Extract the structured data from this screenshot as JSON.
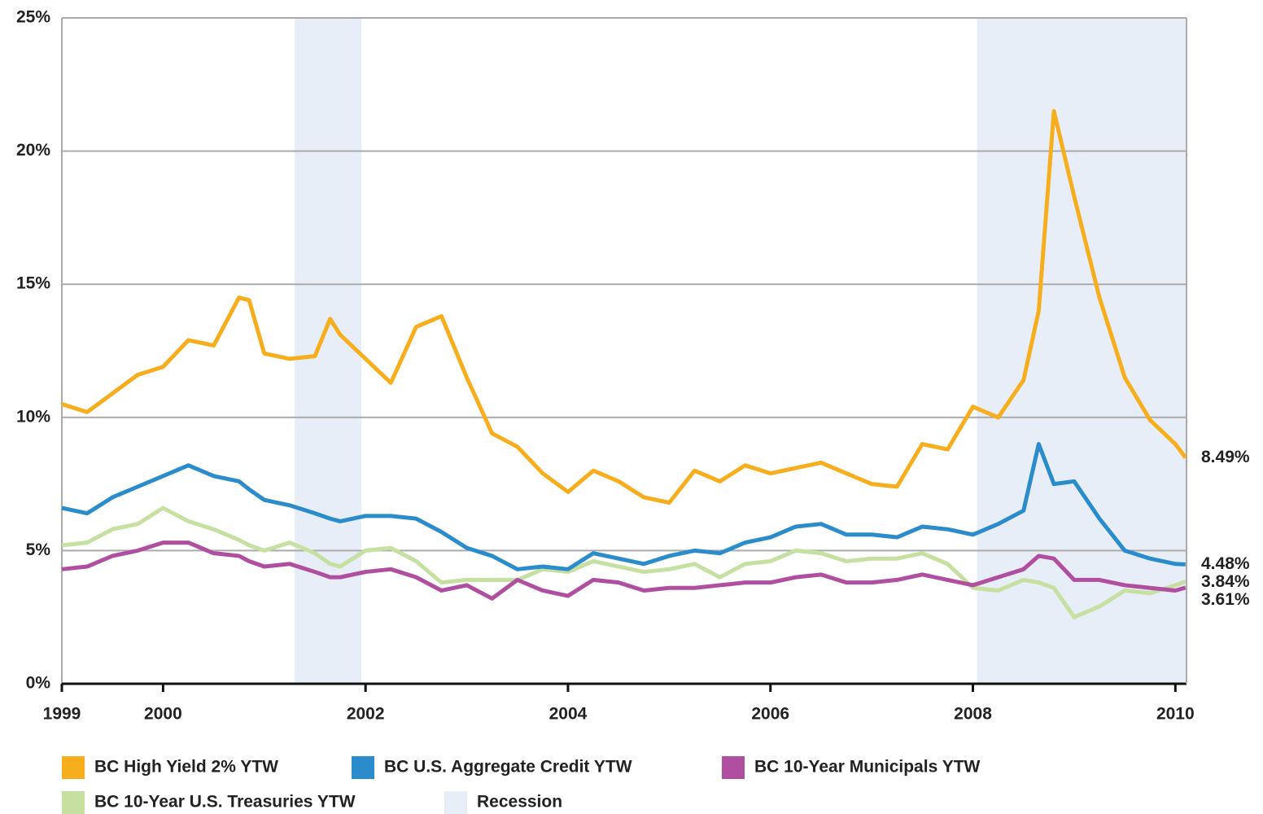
{
  "chart_data": {
    "type": "line",
    "x": [
      1999,
      1999.25,
      1999.5,
      1999.75,
      2000,
      2000.25,
      2000.5,
      2000.75,
      2000.85,
      2001,
      2001.25,
      2001.5,
      2001.65,
      2001.75,
      2002,
      2002.25,
      2002.5,
      2002.75,
      2003,
      2003.25,
      2003.5,
      2003.75,
      2004,
      2004.25,
      2004.5,
      2004.75,
      2005,
      2005.25,
      2005.5,
      2005.75,
      2006,
      2006.25,
      2006.5,
      2006.75,
      2007,
      2007.25,
      2007.5,
      2007.75,
      2008,
      2008.25,
      2008.5,
      2008.65,
      2008.8,
      2009,
      2009.25,
      2009.5,
      2009.75,
      2010,
      2010.1
    ],
    "series": [
      {
        "name": "BC High Yield 2% YTW",
        "color": "#f6ae1d",
        "values": [
          10.5,
          10.2,
          10.9,
          11.6,
          11.9,
          12.9,
          12.7,
          14.5,
          14.4,
          12.4,
          12.2,
          12.3,
          13.7,
          13.1,
          12.2,
          11.3,
          13.4,
          13.8,
          11.5,
          9.4,
          8.9,
          7.9,
          7.2,
          8.0,
          7.6,
          7.0,
          6.8,
          8.0,
          7.6,
          8.2,
          7.9,
          8.1,
          8.3,
          7.9,
          7.5,
          7.4,
          9.0,
          8.8,
          10.4,
          10.0,
          11.4,
          14.0,
          21.5,
          18.3,
          14.5,
          11.5,
          9.9,
          9.0,
          8.49
        ],
        "value_labels": [
          null,
          null,
          null,
          null,
          null,
          null,
          null,
          null,
          null,
          null,
          null,
          null,
          null,
          null,
          null,
          null,
          null,
          null,
          null,
          null,
          null,
          null,
          null,
          null,
          null,
          null,
          null,
          null,
          null,
          null,
          null,
          null,
          null,
          null,
          null,
          null,
          null,
          null,
          null,
          null,
          null,
          null,
          null,
          null,
          null,
          null,
          null,
          null,
          "8.49%"
        ]
      },
      {
        "name": "BC U.S. Aggregate Credit YTW",
        "color": "#2b8ccc",
        "values": [
          6.6,
          6.4,
          7.0,
          7.4,
          7.8,
          8.2,
          7.8,
          7.6,
          7.3,
          6.9,
          6.7,
          6.4,
          6.2,
          6.1,
          6.3,
          6.3,
          6.2,
          5.7,
          5.1,
          4.8,
          4.3,
          4.4,
          4.3,
          4.9,
          4.7,
          4.5,
          4.8,
          5.0,
          4.9,
          5.3,
          5.5,
          5.9,
          6.0,
          5.6,
          5.6,
          5.5,
          5.9,
          5.8,
          5.6,
          6.0,
          6.5,
          9.0,
          7.5,
          7.6,
          6.2,
          5.0,
          4.7,
          4.5,
          4.48
        ],
        "value_labels": [
          null,
          null,
          null,
          null,
          null,
          null,
          null,
          null,
          null,
          null,
          null,
          null,
          null,
          null,
          null,
          null,
          null,
          null,
          null,
          null,
          null,
          null,
          null,
          null,
          null,
          null,
          null,
          null,
          null,
          null,
          null,
          null,
          null,
          null,
          null,
          null,
          null,
          null,
          null,
          null,
          null,
          null,
          null,
          null,
          null,
          null,
          null,
          null,
          "4.48%"
        ]
      },
      {
        "name": "BC 10-Year Municipals YTW",
        "color": "#b04ea0",
        "values": [
          4.3,
          4.4,
          4.8,
          5.0,
          5.3,
          5.3,
          4.9,
          4.8,
          4.6,
          4.4,
          4.5,
          4.2,
          4.0,
          4.0,
          4.2,
          4.3,
          4.0,
          3.5,
          3.7,
          3.2,
          3.9,
          3.5,
          3.3,
          3.9,
          3.8,
          3.5,
          3.6,
          3.6,
          3.7,
          3.8,
          3.8,
          4.0,
          4.1,
          3.8,
          3.8,
          3.9,
          4.1,
          3.9,
          3.7,
          4.0,
          4.3,
          4.8,
          4.7,
          3.9,
          3.9,
          3.7,
          3.6,
          3.5,
          3.61
        ],
        "value_labels": [
          null,
          null,
          null,
          null,
          null,
          null,
          null,
          null,
          null,
          null,
          null,
          null,
          null,
          null,
          null,
          null,
          null,
          null,
          null,
          null,
          null,
          null,
          null,
          null,
          null,
          null,
          null,
          null,
          null,
          null,
          null,
          null,
          null,
          null,
          null,
          null,
          null,
          null,
          null,
          null,
          null,
          null,
          null,
          null,
          null,
          null,
          null,
          null,
          "3.61%"
        ]
      },
      {
        "name": "BC 10-Year U.S. Treasuries YTW",
        "color": "#c5e0a0",
        "values": [
          5.2,
          5.3,
          5.8,
          6.0,
          6.6,
          6.1,
          5.8,
          5.4,
          5.2,
          5.0,
          5.3,
          4.9,
          4.5,
          4.4,
          5.0,
          5.1,
          4.6,
          3.8,
          3.9,
          3.9,
          3.9,
          4.3,
          4.2,
          4.6,
          4.4,
          4.2,
          4.3,
          4.5,
          4.0,
          4.5,
          4.6,
          5.0,
          4.9,
          4.6,
          4.7,
          4.7,
          4.9,
          4.5,
          3.6,
          3.5,
          3.9,
          3.8,
          3.6,
          2.5,
          2.9,
          3.5,
          3.4,
          3.7,
          3.84
        ],
        "value_labels": [
          null,
          null,
          null,
          null,
          null,
          null,
          null,
          null,
          null,
          null,
          null,
          null,
          null,
          null,
          null,
          null,
          null,
          null,
          null,
          null,
          null,
          null,
          null,
          null,
          null,
          null,
          null,
          null,
          null,
          null,
          null,
          null,
          null,
          null,
          null,
          null,
          null,
          null,
          null,
          null,
          null,
          null,
          null,
          null,
          null,
          null,
          null,
          null,
          "3.84%"
        ]
      }
    ],
    "recession": {
      "name": "Recession",
      "color": "#e8eef8",
      "periods": [
        [
          2001.3,
          2001.96
        ],
        [
          2008.04,
          2010.11
        ]
      ]
    },
    "xlim": [
      1999,
      2010.11
    ],
    "xticks": [
      1999,
      2000,
      2002,
      2004,
      2006,
      2008,
      2010
    ],
    "ylim": [
      0,
      25
    ],
    "yticks": [
      {
        "value": 0,
        "label": "0%"
      },
      {
        "value": 5,
        "label": "5%"
      },
      {
        "value": 10,
        "label": "10%"
      },
      {
        "value": 15,
        "label": "15%"
      },
      {
        "value": 20,
        "label": "20%"
      },
      {
        "value": 25,
        "label": "25%"
      }
    ],
    "grid": true,
    "legend": "bottom"
  }
}
